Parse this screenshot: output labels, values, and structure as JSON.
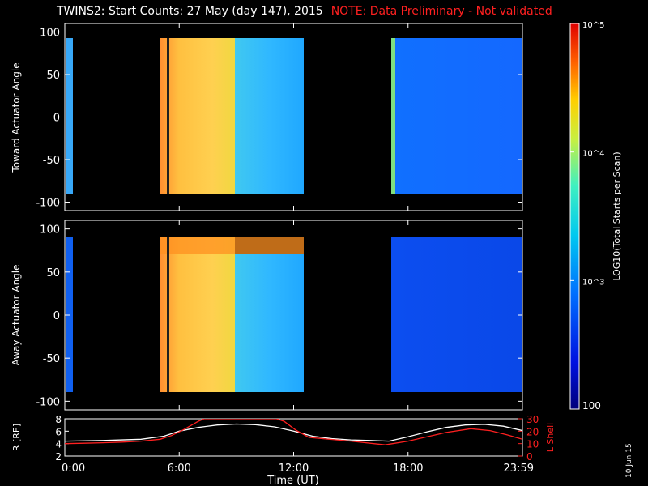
{
  "header": {
    "title": "TWINS2: Start Counts: 27 May (day 147), 2015",
    "note": "NOTE: Data Preliminary - Not validated"
  },
  "side_label": "10 Jun 15",
  "colorbar": {
    "label": "LOG10(Total Starts per Scan)",
    "ticks": [
      "100",
      "10^3",
      "10^4",
      "10^5"
    ],
    "range": [
      100,
      100000
    ],
    "scale": "log"
  },
  "chart_data": [
    {
      "type": "heatmap",
      "ylabel": "Toward Actuator Angle",
      "ylim": [
        -110,
        110
      ],
      "yticks": [
        "100",
        "50",
        "0",
        "-50",
        "-100"
      ],
      "xlim": [
        0,
        24
      ],
      "angle_range": [
        -90,
        90
      ],
      "data_segments": [
        {
          "start_hour": 0.0,
          "end_hour": 0.2,
          "level": "low-mid"
        },
        {
          "start_hour": 5.0,
          "end_hour": 12.75,
          "level": "high"
        },
        {
          "start_hour": 16.7,
          "end_hour": 24.0,
          "level": "low"
        }
      ]
    },
    {
      "type": "heatmap",
      "ylabel": "Away Actuator Angle",
      "ylim": [
        -110,
        110
      ],
      "yticks": [
        "100",
        "50",
        "0",
        "-50",
        "-100"
      ],
      "xlim": [
        0,
        24
      ],
      "angle_range": [
        -90,
        90
      ],
      "data_segments": [
        {
          "start_hour": 0.0,
          "end_hour": 0.2,
          "level": "low"
        },
        {
          "start_hour": 5.0,
          "end_hour": 12.75,
          "level": "high"
        },
        {
          "start_hour": 16.7,
          "end_hour": 24.0,
          "level": "low"
        }
      ]
    },
    {
      "type": "line",
      "xlabel": "Time (UT)",
      "xticks": [
        "0:00",
        "6:00",
        "12:00",
        "18:00",
        "23:59"
      ],
      "xtick_hours": [
        0,
        6,
        12,
        18,
        24
      ],
      "ylabel_left": "R [RE]",
      "ylabel_right": "L Shell",
      "ylim_left": [
        2,
        8
      ],
      "yticks_left": [
        "2",
        "4",
        "6",
        "8"
      ],
      "ylim_right": [
        0,
        30
      ],
      "yticks_right": [
        "0",
        "10",
        "20",
        "30"
      ],
      "series": [
        {
          "axis": "left",
          "color": "#ffffff",
          "x": [
            0,
            2,
            4,
            5.2,
            6,
            7,
            8,
            9,
            10,
            11,
            12,
            13,
            14,
            15,
            16,
            17,
            18,
            19,
            20,
            21,
            22,
            23,
            24
          ],
          "y": [
            4.4,
            4.5,
            4.7,
            5.2,
            6.0,
            6.6,
            7.0,
            7.15,
            7.05,
            6.7,
            6.0,
            5.2,
            4.8,
            4.6,
            4.5,
            4.4,
            5.1,
            5.9,
            6.6,
            7.0,
            7.1,
            6.8,
            6.1
          ]
        },
        {
          "axis": "right",
          "color": "#ff2020",
          "x": [
            0,
            1,
            2,
            3,
            4,
            5,
            5.6,
            6.2,
            7.0,
            7.3,
            11.1,
            11.5,
            12.1,
            12.8,
            13.5,
            15,
            16.8,
            18,
            20,
            21.3,
            22.3,
            23.2,
            24
          ],
          "y": [
            10,
            10.3,
            10.7,
            11.2,
            12,
            13.5,
            16.5,
            21,
            28,
            30,
            30,
            28,
            21,
            15,
            14,
            12,
            9,
            12,
            19,
            22,
            20.5,
            17,
            13.5
          ]
        }
      ]
    }
  ]
}
